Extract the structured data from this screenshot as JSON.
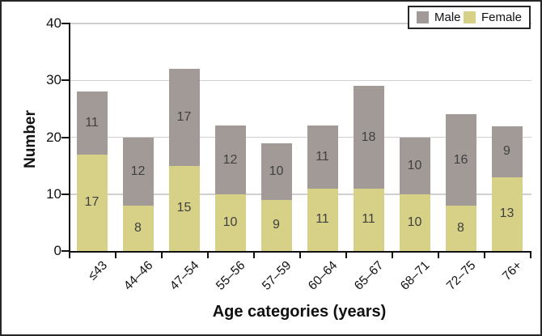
{
  "chart_data": {
    "type": "bar",
    "stacked": true,
    "categories": [
      "≤43",
      "44–46",
      "47–54",
      "55–56",
      "57–59",
      "60–64",
      "65–67",
      "68–71",
      "72–75",
      "76+"
    ],
    "series": [
      {
        "name": "Female",
        "color": "#d6d187",
        "values": [
          17,
          8,
          15,
          10,
          9,
          11,
          11,
          10,
          8,
          13
        ]
      },
      {
        "name": "Male",
        "color": "#a29a96",
        "values": [
          11,
          12,
          17,
          12,
          10,
          11,
          18,
          10,
          16,
          9
        ]
      }
    ],
    "totals": [
      28,
      20,
      32,
      22,
      19,
      22,
      29,
      20,
      24,
      22
    ],
    "xlabel": "Age categories (years)",
    "ylabel": "Number",
    "ylim": [
      0,
      40
    ],
    "yticks": [
      0,
      10,
      20,
      30,
      40
    ],
    "grid": true,
    "grid_color": "#d0cece",
    "axis_color": "#111111",
    "bar_label_color": "#404040",
    "legend_position": "top-right",
    "legend": [
      {
        "label": "Male",
        "color": "#a29a96"
      },
      {
        "label": "Female",
        "color": "#d6d187"
      }
    ]
  }
}
